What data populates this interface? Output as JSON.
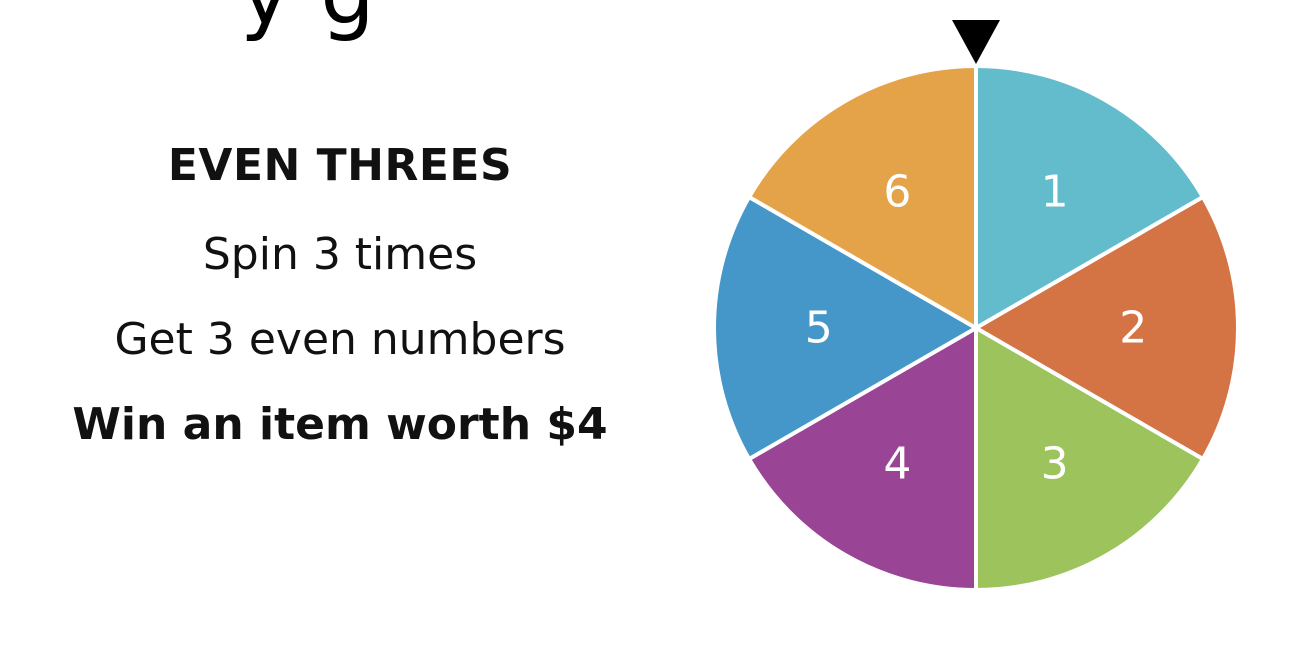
{
  "heading_fragment": "y  g",
  "game": {
    "title": "EVEN THREES",
    "rule_spin": "Spin 3 times",
    "rule_get": "Get 3 even numbers",
    "prize": "Win an item worth $4"
  },
  "spinner": {
    "pointer_icon": "downward-triangle",
    "sections": [
      {
        "label": "1",
        "color": "#62bccb"
      },
      {
        "label": "2",
        "color": "#d47444"
      },
      {
        "label": "3",
        "color": "#9cc35c"
      },
      {
        "label": "4",
        "color": "#9a4495"
      },
      {
        "label": "5",
        "color": "#4497c8"
      },
      {
        "label": "6",
        "color": "#e4a348"
      }
    ]
  }
}
